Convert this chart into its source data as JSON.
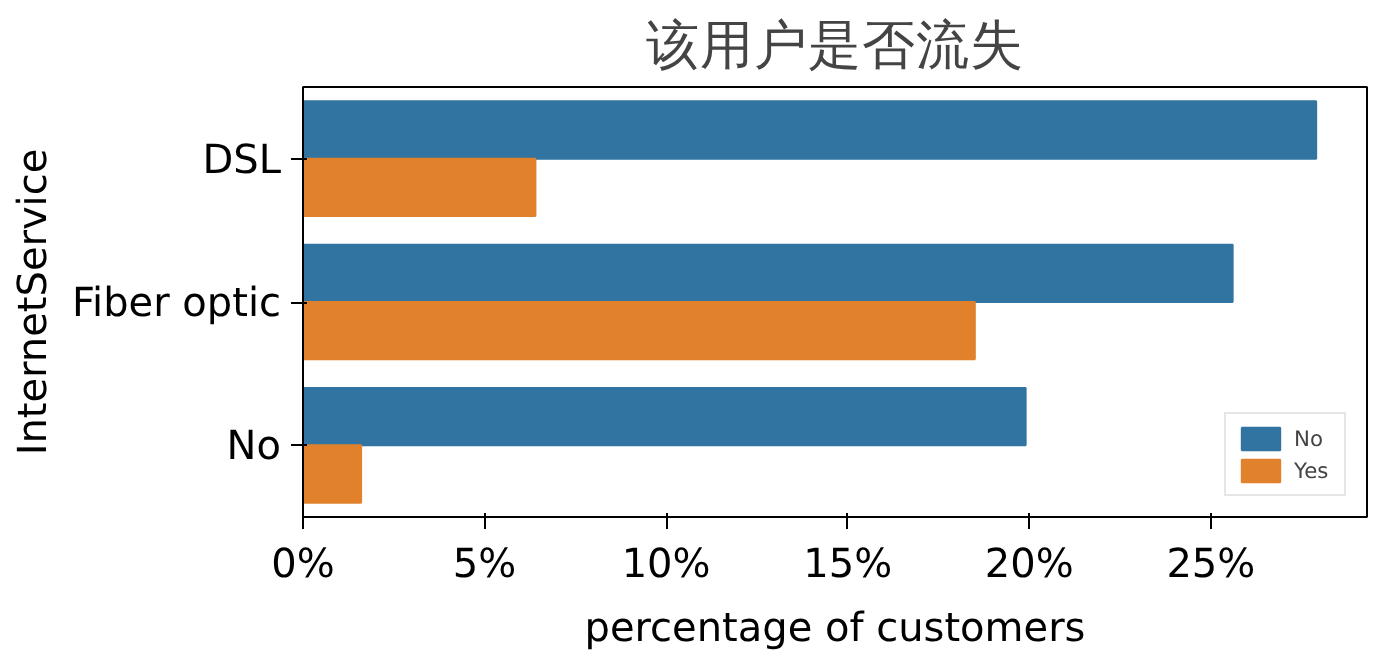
{
  "chart_data": {
    "type": "bar",
    "orientation": "horizontal",
    "title": "该用户是否流失",
    "xlabel": "percentage of customers",
    "ylabel": "InternetService",
    "categories": [
      "DSL",
      "Fiber optic",
      "No"
    ],
    "series": [
      {
        "name": "No",
        "color": "#3274a1",
        "values": [
          27.9,
          25.6,
          19.9
        ]
      },
      {
        "name": "Yes",
        "color": "#e1812c",
        "values": [
          6.4,
          18.5,
          1.6
        ]
      }
    ],
    "xlim": [
      0,
      29.3
    ],
    "xticks": [
      {
        "value": 0,
        "label": "0%"
      },
      {
        "value": 5,
        "label": "5%"
      },
      {
        "value": 10,
        "label": "10%"
      },
      {
        "value": 15,
        "label": "15%"
      },
      {
        "value": 20,
        "label": "20%"
      },
      {
        "value": 25,
        "label": "25%"
      }
    ],
    "legend": "bottom right",
    "grid": false
  }
}
